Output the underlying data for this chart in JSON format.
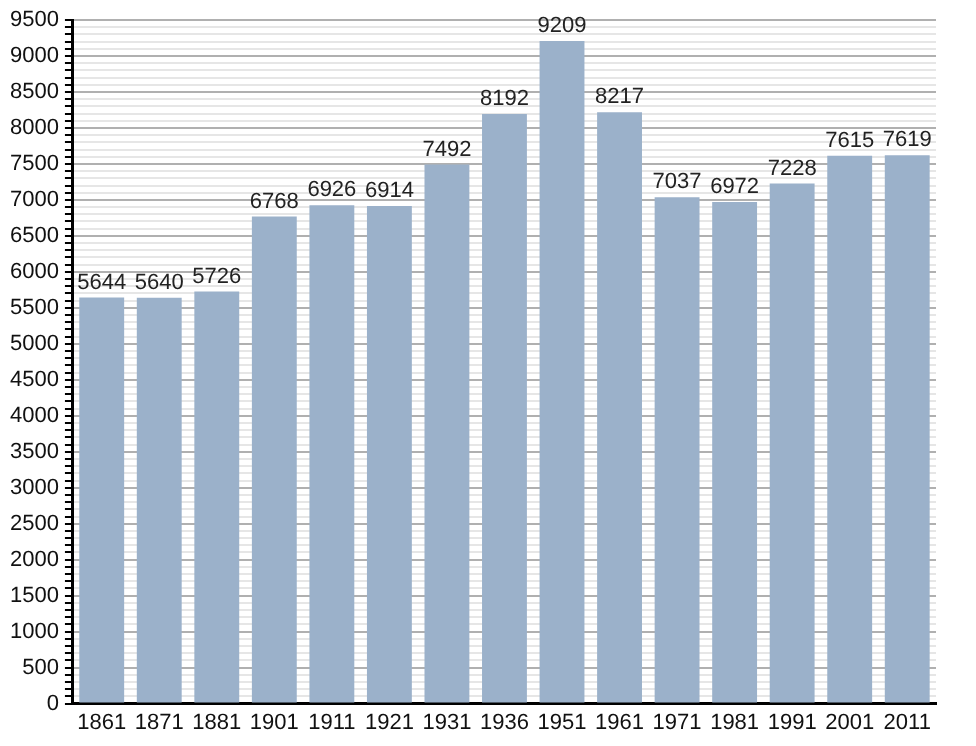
{
  "chart_data": {
    "type": "bar",
    "categories": [
      "1861",
      "1871",
      "1881",
      "1901",
      "1911",
      "1921",
      "1931",
      "1936",
      "1951",
      "1961",
      "1971",
      "1981",
      "1991",
      "2001",
      "2011"
    ],
    "values": [
      5644,
      5640,
      5726,
      6768,
      6926,
      6914,
      7492,
      8192,
      9209,
      8217,
      7037,
      6972,
      7228,
      7615,
      7619
    ],
    "color": "#9bb1ca",
    "ylim": [
      0,
      9500
    ],
    "yticks": [
      0,
      {
        "value": 100,
        "label": null
      },
      {
        "value": 200,
        "label": null
      },
      {
        "value": 300,
        "label": null
      },
      {
        "value": 400,
        "label": null
      },
      500,
      {
        "value": 600,
        "label": null
      },
      {
        "value": 700,
        "label": null
      },
      {
        "value": 800,
        "label": null
      },
      {
        "value": 900,
        "label": null
      },
      1000,
      {
        "value": 1100,
        "label": null
      },
      {
        "value": 1200,
        "label": null
      },
      {
        "value": 1300,
        "label": null
      },
      {
        "value": 1400,
        "label": null
      },
      1500,
      {
        "value": 1600,
        "label": null
      },
      {
        "value": 1700,
        "label": null
      },
      {
        "value": 1800,
        "label": null
      },
      {
        "value": 1900,
        "label": null
      },
      2000,
      {
        "value": 2100,
        "label": null
      },
      {
        "value": 2200,
        "label": null
      },
      {
        "value": 2300,
        "label": null
      },
      {
        "value": 2400,
        "label": null
      },
      2500,
      {
        "value": 2600,
        "label": null
      },
      {
        "value": 2700,
        "label": null
      },
      {
        "value": 2800,
        "label": null
      },
      {
        "value": 2900,
        "label": null
      },
      3000,
      {
        "value": 3100,
        "label": null
      },
      {
        "value": 3200,
        "label": null
      },
      {
        "value": 3300,
        "label": null
      },
      {
        "value": 3400,
        "label": null
      },
      3500,
      {
        "value": 3600,
        "label": null
      },
      {
        "value": 3700,
        "label": null
      },
      {
        "value": 3800,
        "label": null
      },
      {
        "value": 3900,
        "label": null
      },
      4000,
      {
        "value": 4100,
        "label": null
      },
      {
        "value": 4200,
        "label": null
      },
      {
        "value": 4300,
        "label": null
      },
      {
        "value": 4400,
        "label": null
      },
      4500,
      {
        "value": 4600,
        "label": null
      },
      {
        "value": 4700,
        "label": null
      },
      {
        "value": 4800,
        "label": null
      },
      {
        "value": 4900,
        "label": null
      },
      5000,
      {
        "value": 5100,
        "label": null
      },
      {
        "value": 5200,
        "label": null
      },
      {
        "value": 5300,
        "label": null
      },
      {
        "value": 5400,
        "label": null
      },
      5500,
      {
        "value": 5600,
        "label": null
      },
      {
        "value": 5700,
        "label": null
      },
      {
        "value": 5800,
        "label": null
      },
      {
        "value": 5900,
        "label": null
      },
      6000,
      {
        "value": 6100,
        "label": null
      },
      {
        "value": 6200,
        "label": null
      },
      {
        "value": 6300,
        "label": null
      },
      {
        "value": 6400,
        "label": null
      },
      6500,
      {
        "value": 6600,
        "label": null
      },
      {
        "value": 6700,
        "label": null
      },
      {
        "value": 6800,
        "label": null
      },
      {
        "value": 6900,
        "label": null
      },
      7000,
      {
        "value": 7100,
        "label": null
      },
      {
        "value": 7200,
        "label": null
      },
      {
        "value": 7300,
        "label": null
      },
      {
        "value": 7400,
        "label": null
      },
      7500,
      {
        "value": 7600,
        "label": null
      },
      {
        "value": 7700,
        "label": null
      },
      {
        "value": 7800,
        "label": null
      },
      {
        "value": 7900,
        "label": null
      },
      8000,
      {
        "value": 8100,
        "label": null
      },
      {
        "value": 8200,
        "label": null
      },
      {
        "value": 8300,
        "label": null
      },
      {
        "value": 8400,
        "label": null
      },
      8500,
      {
        "value": 8600,
        "label": null
      },
      {
        "value": 8700,
        "label": null
      },
      {
        "value": 8800,
        "label": null
      },
      {
        "value": 8900,
        "label": null
      },
      9000,
      {
        "value": 9100,
        "label": null
      },
      {
        "value": 9200,
        "label": null
      },
      {
        "value": 9300,
        "label": null
      },
      {
        "value": 9400,
        "label": null
      },
      9500
    ],
    "grid": "y",
    "data_labels": true
  }
}
